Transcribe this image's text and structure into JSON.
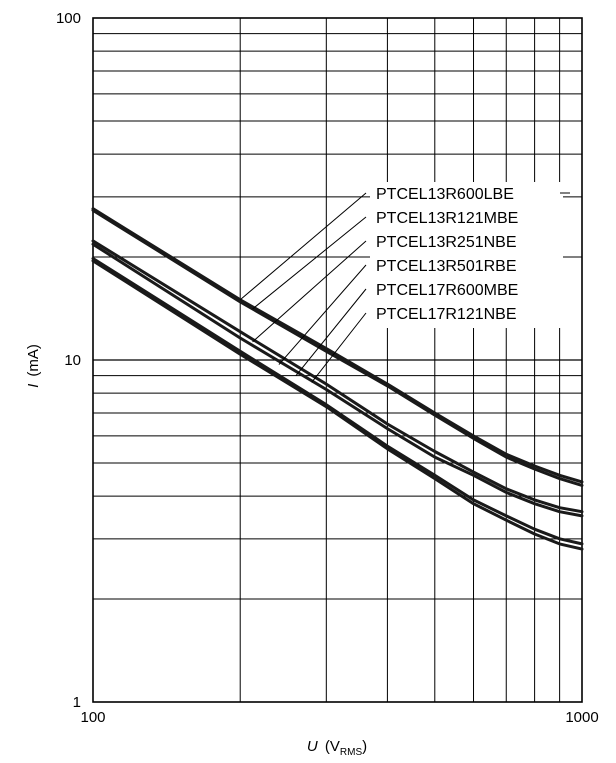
{
  "chart_data": {
    "type": "line",
    "title": "",
    "x_scale": "log",
    "y_scale": "log",
    "xlim": [
      100,
      1000
    ],
    "ylim": [
      1,
      100
    ],
    "grid": true,
    "legend_placement": "center-right",
    "xlabel": {
      "symbol": "U",
      "unit": "V",
      "unit_sub": "RMS"
    },
    "ylabel": {
      "symbol": "I",
      "unit": "(mA)"
    },
    "x_tick_labels": [
      {
        "value": 100,
        "label": "100"
      },
      {
        "value": 1000,
        "label": "1000"
      }
    ],
    "y_tick_labels": [
      {
        "value": 1,
        "label": "1"
      },
      {
        "value": 10,
        "label": "10"
      },
      {
        "value": 100,
        "label": "100"
      }
    ],
    "series": [
      {
        "name": "PTCEL13R600LBE",
        "x": [
          100,
          200,
          300,
          400,
          500,
          600,
          700,
          800,
          900,
          1000
        ],
        "y": [
          27.7,
          15.0,
          10.8,
          8.5,
          7.0,
          6.0,
          5.3,
          4.9,
          4.6,
          4.4
        ]
      },
      {
        "name": "PTCEL13R121MBE",
        "x": [
          100,
          200,
          300,
          400,
          500,
          600,
          700,
          800,
          900,
          1000
        ],
        "y": [
          27.4,
          14.8,
          10.6,
          8.4,
          6.9,
          5.9,
          5.2,
          4.8,
          4.5,
          4.3
        ]
      },
      {
        "name": "PTCEL13R251NBE",
        "x": [
          100,
          200,
          300,
          400,
          500,
          600,
          700,
          800,
          900,
          1000
        ],
        "y": [
          22.3,
          12.1,
          8.5,
          6.5,
          5.4,
          4.7,
          4.2,
          3.9,
          3.7,
          3.6
        ]
      },
      {
        "name": "PTCEL13R501RBE",
        "x": [
          100,
          200,
          300,
          400,
          500,
          600,
          700,
          800,
          900,
          1000
        ],
        "y": [
          21.8,
          11.6,
          8.2,
          6.3,
          5.2,
          4.6,
          4.1,
          3.8,
          3.6,
          3.5
        ]
      },
      {
        "name": "PTCEL17R600MBE",
        "x": [
          100,
          200,
          300,
          400,
          500,
          600,
          700,
          800,
          900,
          1000
        ],
        "y": [
          19.8,
          10.6,
          7.4,
          5.6,
          4.6,
          3.9,
          3.5,
          3.2,
          3.0,
          2.9
        ]
      },
      {
        "name": "PTCEL17R121NBE",
        "x": [
          100,
          200,
          300,
          400,
          500,
          600,
          700,
          800,
          900,
          1000
        ],
        "y": [
          19.5,
          10.4,
          7.3,
          5.5,
          4.5,
          3.8,
          3.4,
          3.1,
          2.9,
          2.8
        ]
      }
    ],
    "legend_targets": [
      {
        "series": "PTCEL13R600LBE",
        "x": 200,
        "y": 15.0
      },
      {
        "series": "PTCEL13R121MBE",
        "x": 212,
        "y": 14.1
      },
      {
        "series": "PTCEL13R251NBE",
        "x": 212,
        "y": 11.3
      },
      {
        "series": "PTCEL13R501RBE",
        "x": 240,
        "y": 9.7
      },
      {
        "series": "PTCEL17R600MBE",
        "x": 260,
        "y": 9.0
      },
      {
        "series": "PTCEL17R121NBE",
        "x": 280,
        "y": 8.6
      }
    ]
  }
}
